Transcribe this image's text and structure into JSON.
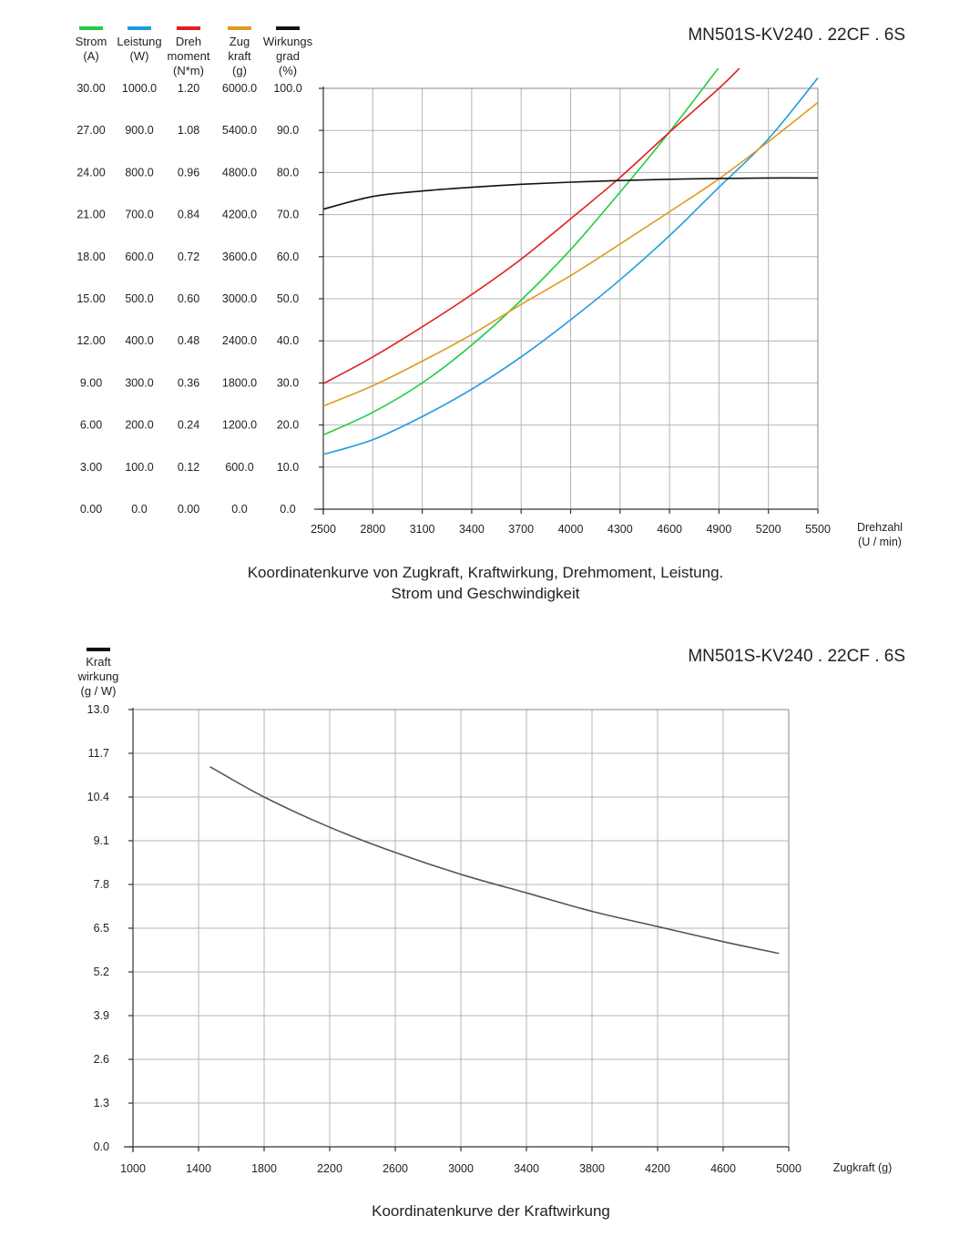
{
  "chart_data": [
    {
      "type": "line",
      "title": "MN501S-KV240 . 22CF . 6S",
      "caption_lines": [
        "Koordinatenkurve von Zugkraft, Kraftwirkung, Drehmoment, Leistung.",
        "Strom und Geschwindigkeit"
      ],
      "xlabel_lines": [
        "Drehzahl",
        "(U / min)"
      ],
      "xlim": [
        2500,
        5500
      ],
      "x_ticks": [
        "2500",
        "2800",
        "3100",
        "3400",
        "3700",
        "4000",
        "4300",
        "4600",
        "4900",
        "5200",
        "5500"
      ],
      "grid": true,
      "y_axes": [
        {
          "label_lines": [
            "Strom",
            "(A)"
          ],
          "color": "#22cc44",
          "ylim": [
            0,
            30
          ],
          "ticks": [
            "0.00",
            "3.00",
            "6.00",
            "9.00",
            "12.00",
            "15.00",
            "18.00",
            "21.00",
            "24.00",
            "27.00",
            "30.00"
          ]
        },
        {
          "label_lines": [
            "Leistung",
            "(W)"
          ],
          "color": "#1e9be0",
          "ylim": [
            0,
            1000
          ],
          "ticks": [
            "0.0",
            "100.0",
            "200.0",
            "300.0",
            "400.0",
            "500.0",
            "600.0",
            "700.0",
            "800.0",
            "900.0",
            "1000.0"
          ]
        },
        {
          "label_lines": [
            "Dreh",
            "moment",
            "(N*m)"
          ],
          "color": "#e01f1f",
          "ylim": [
            0,
            1.2
          ],
          "ticks": [
            "0.00",
            "0.12",
            "0.24",
            "0.36",
            "0.48",
            "0.60",
            "0.72",
            "0.84",
            "0.96",
            "1.08",
            "1.20"
          ]
        },
        {
          "label_lines": [
            "Zug",
            "kraft",
            "(g)"
          ],
          "color": "#e09a1e",
          "ylim": [
            0,
            6000
          ],
          "ticks": [
            "0.0",
            "600.0",
            "1200.0",
            "1800.0",
            "2400.0",
            "3000.0",
            "3600.0",
            "4200.0",
            "4800.0",
            "5400.0",
            "6000.0"
          ]
        },
        {
          "label_lines": [
            "Wirkungs",
            "grad",
            "(%)"
          ],
          "color": "#111111",
          "ylim": [
            0,
            100
          ],
          "ticks": [
            "0.0",
            "10.0",
            "20.0",
            "30.0",
            "40.0",
            "50.0",
            "60.0",
            "70.0",
            "80.0",
            "90.0",
            "100.0"
          ]
        }
      ],
      "series": [
        {
          "name": "Strom",
          "axis": 0,
          "x": [
            2500,
            2800,
            3100,
            3400,
            3700,
            4000,
            4300,
            4600,
            4900
          ],
          "y": [
            5.3,
            6.9,
            9.0,
            11.7,
            14.9,
            18.5,
            22.6,
            26.9,
            31.5
          ]
        },
        {
          "name": "Leistung",
          "axis": 1,
          "x": [
            2500,
            2800,
            3100,
            3400,
            3700,
            4000,
            4300,
            4600,
            4900,
            5200,
            5500
          ],
          "y": [
            130,
            165,
            220,
            285,
            362,
            450,
            545,
            650,
            765,
            880,
            1025
          ]
        },
        {
          "name": "Drehmoment",
          "axis": 2,
          "x": [
            2500,
            2800,
            3100,
            3400,
            3700,
            4000,
            4300,
            4600,
            4900,
            5030
          ],
          "y": [
            0.358,
            0.434,
            0.52,
            0.612,
            0.713,
            0.828,
            0.946,
            1.075,
            1.2,
            1.26
          ]
        },
        {
          "name": "Zugkraft",
          "axis": 3,
          "x": [
            2500,
            2800,
            3100,
            3400,
            3700,
            4000,
            4300,
            4600,
            4900,
            5200,
            5500
          ],
          "y": [
            1470,
            1760,
            2110,
            2490,
            2920,
            3330,
            3780,
            4240,
            4710,
            5240,
            5800
          ]
        },
        {
          "name": "Wirkungsgrad",
          "axis": 4,
          "x": [
            2500,
            2800,
            3100,
            3400,
            3700,
            4000,
            4300,
            4600,
            4900,
            5200,
            5500
          ],
          "y": [
            71.3,
            74.3,
            75.6,
            76.5,
            77.2,
            77.7,
            78.1,
            78.4,
            78.6,
            78.7,
            78.7
          ]
        }
      ]
    },
    {
      "type": "line",
      "title": "MN501S-KV240 . 22CF . 6S",
      "caption_lines": [
        "Koordinatenkurve der Kraftwirkung"
      ],
      "xlabel_lines": [
        "Zugkraft (g)"
      ],
      "xlim": [
        1000,
        5000
      ],
      "x_ticks": [
        "1000",
        "1400",
        "1800",
        "2200",
        "2600",
        "3000",
        "3400",
        "3800",
        "4200",
        "4600",
        "5000"
      ],
      "grid": true,
      "y_axes": [
        {
          "label_lines": [
            "Kraft",
            "wirkung",
            "(g / W)"
          ],
          "color": "#111111",
          "ylim": [
            0,
            13.0
          ],
          "ticks": [
            "0.0",
            "1.3",
            "2.6",
            "3.9",
            "5.2",
            "6.5",
            "7.8",
            "9.1",
            "10.4",
            "11.7",
            "13.0"
          ]
        }
      ],
      "series": [
        {
          "name": "Kraftwirkung",
          "axis": 0,
          "x": [
            1470,
            1800,
            2200,
            2600,
            3000,
            3400,
            3800,
            4200,
            4600,
            4940
          ],
          "y": [
            11.3,
            10.4,
            9.5,
            8.75,
            8.1,
            7.55,
            7.0,
            6.55,
            6.1,
            5.75
          ]
        }
      ]
    }
  ]
}
